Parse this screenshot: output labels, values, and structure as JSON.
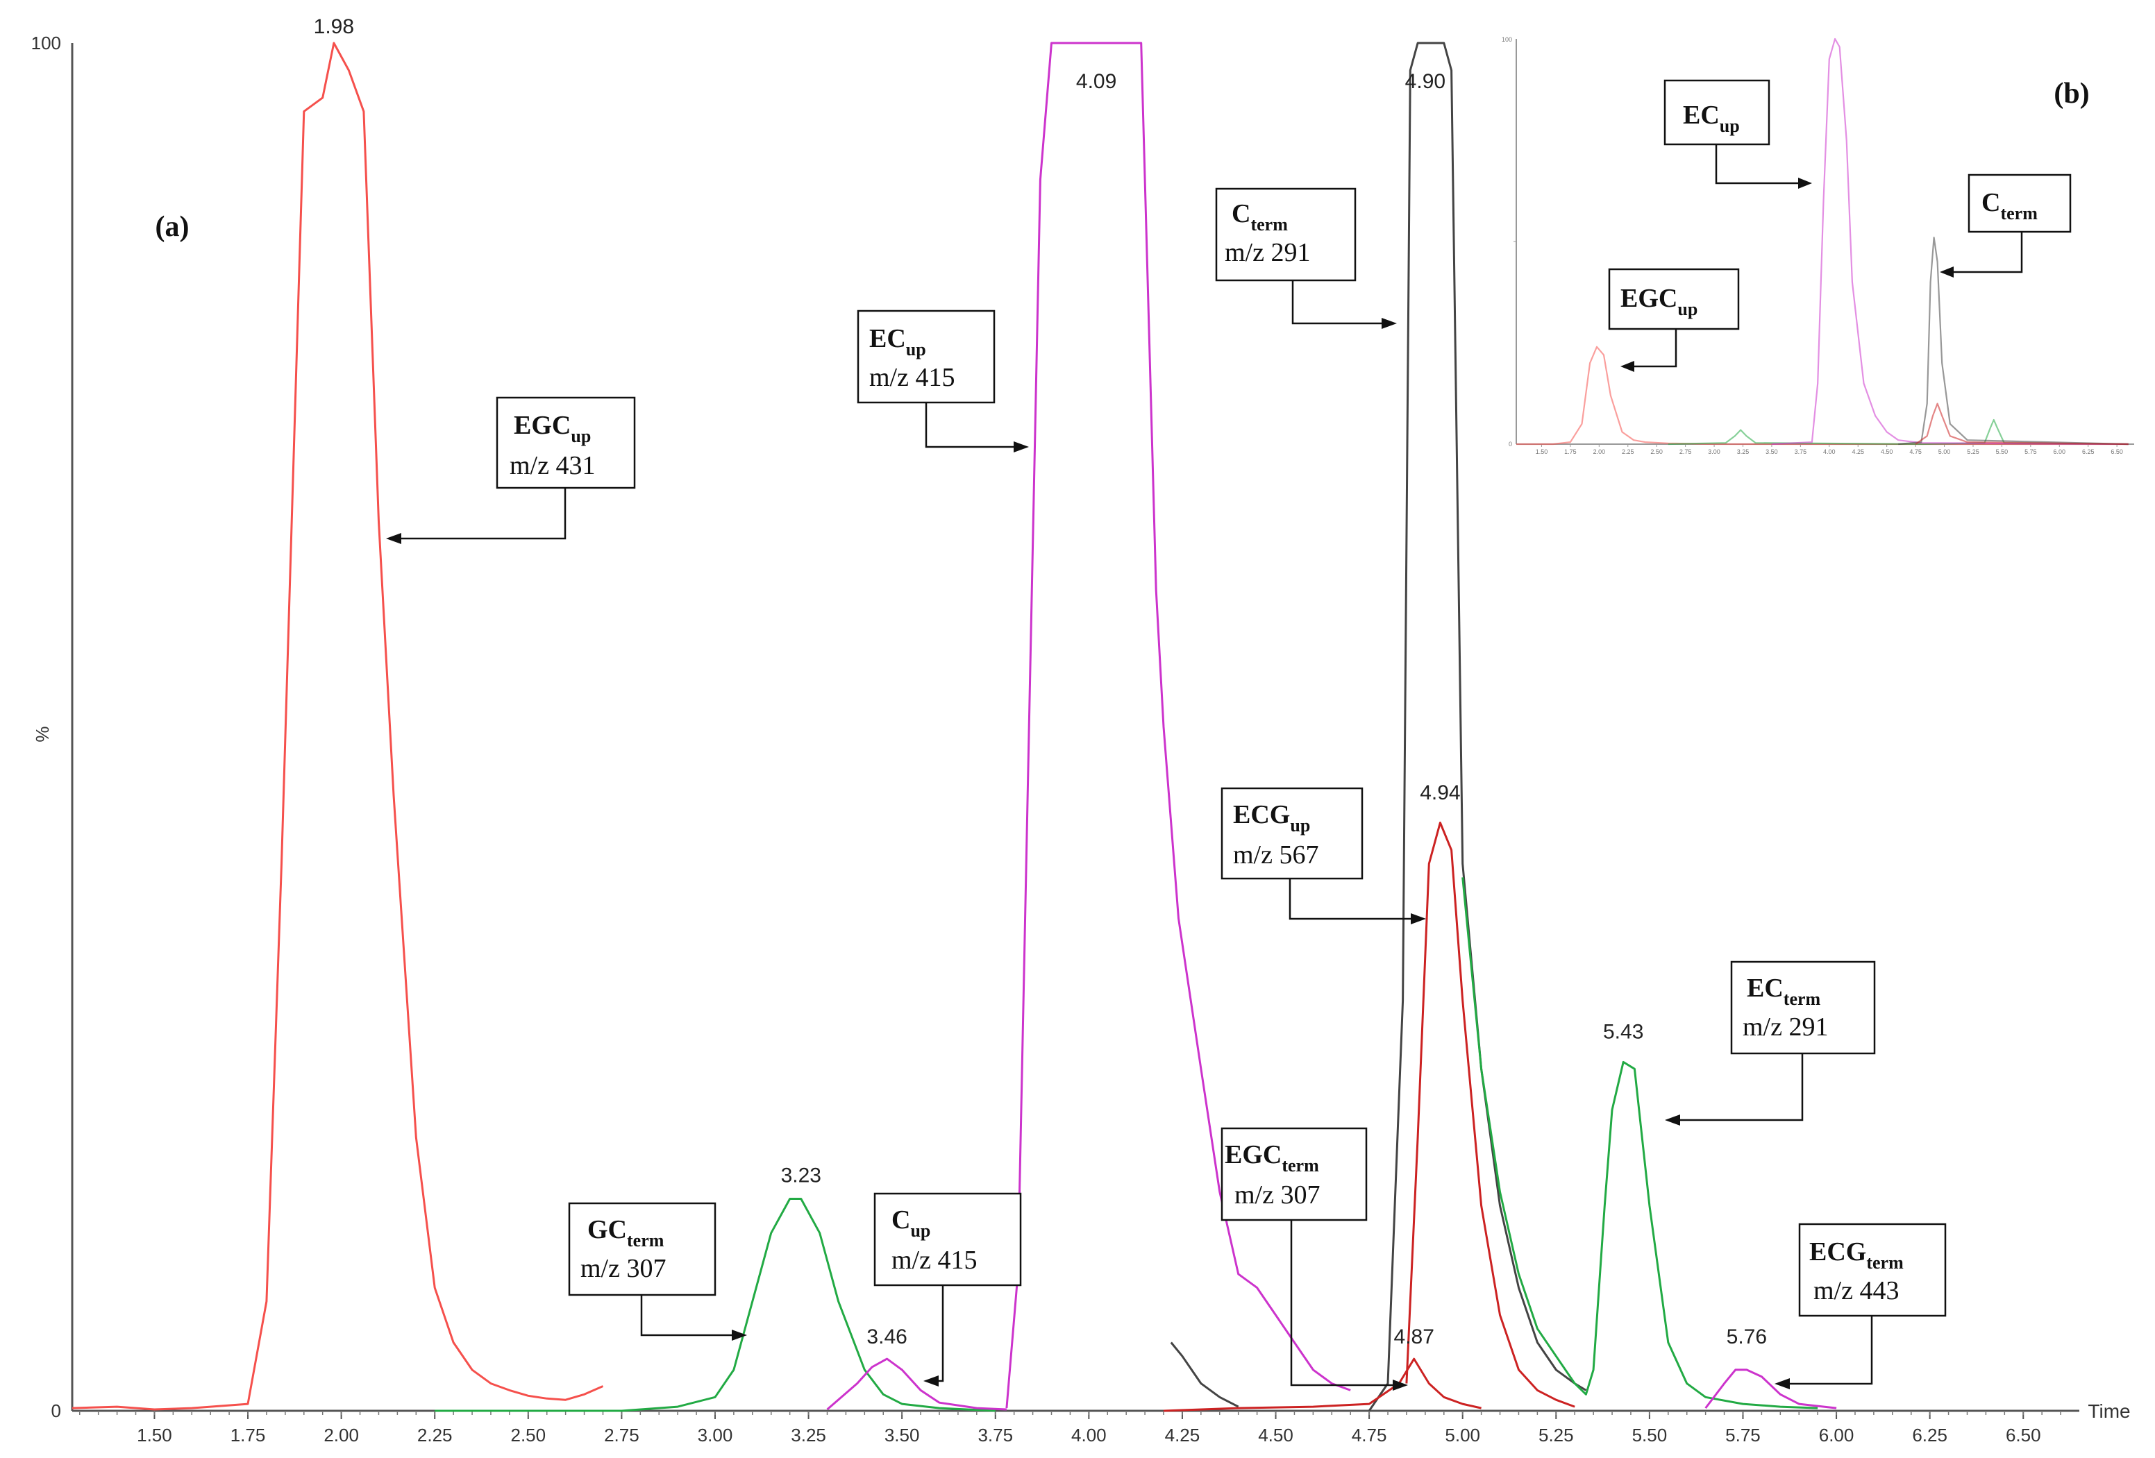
{
  "panel_labels": {
    "a": "(a)",
    "b": "(b)"
  },
  "chart_data": [
    {
      "type": "line",
      "panel": "(a)",
      "xlabel": "Time",
      "ylabel": "%",
      "xlim": [
        1.28,
        6.65
      ],
      "ylim": [
        0,
        100
      ],
      "x_ticks": [
        "1.50",
        "1.75",
        "2.00",
        "2.25",
        "2.50",
        "2.75",
        "3.00",
        "3.25",
        "3.50",
        "3.75",
        "4.00",
        "4.25",
        "4.50",
        "4.75",
        "5.00",
        "5.25",
        "5.50",
        "5.75",
        "6.00",
        "6.25",
        "6.50"
      ],
      "y_ticks": [
        "0",
        "100"
      ],
      "y_mid_label": "%",
      "colors": {
        "red": "#f5504c",
        "magenta": "#cc33cc",
        "black": "#444444",
        "green": "#22aa44",
        "darkred": "#cc2222"
      },
      "series": [
        {
          "color": "red",
          "x": [
            1.28,
            1.4,
            1.5,
            1.6,
            1.75,
            1.8,
            1.84,
            1.9,
            1.95,
            1.98,
            2.02,
            2.06,
            2.1,
            2.14,
            2.2,
            2.25,
            2.3,
            2.35,
            2.4,
            2.45,
            2.5,
            2.55,
            2.6,
            2.65,
            2.7
          ],
          "y": [
            0.2,
            0.3,
            0.1,
            0.2,
            0.5,
            8,
            40,
            95,
            96,
            100,
            98,
            95,
            65,
            45,
            20,
            9,
            5,
            3,
            2,
            1.5,
            1.1,
            0.9,
            0.8,
            1.2,
            1.8
          ]
        },
        {
          "color": "green",
          "x": [
            2.25,
            2.5,
            2.75,
            2.9,
            3.0,
            3.05,
            3.1,
            3.15,
            3.2,
            3.23,
            3.28,
            3.33,
            3.4,
            3.45,
            3.5,
            3.6,
            3.75
          ],
          "y": [
            0,
            0,
            0,
            0.3,
            1,
            3,
            8,
            13,
            15.5,
            15.5,
            13,
            8,
            3,
            1.2,
            0.5,
            0.2,
            0
          ]
        },
        {
          "color": "magenta",
          "x": [
            3.3,
            3.38,
            3.42,
            3.46,
            3.5,
            3.55,
            3.6,
            3.7,
            3.78
          ],
          "y": [
            0.1,
            2,
            3.2,
            3.8,
            3,
            1.5,
            0.6,
            0.2,
            0.1
          ]
        },
        {
          "color": "magenta",
          "x": [
            3.78,
            3.81,
            3.84,
            3.87,
            3.9,
            3.95,
            4.09,
            4.14,
            4.16,
            4.18,
            4.2,
            4.24,
            4.3,
            4.35,
            4.4,
            4.45,
            4.5,
            4.55,
            4.6,
            4.65,
            4.7
          ],
          "y": [
            0.2,
            10,
            50,
            90,
            100,
            100,
            100,
            100,
            80,
            60,
            50,
            36,
            25,
            16,
            10,
            9,
            7,
            5,
            3,
            2,
            1.5
          ]
        },
        {
          "color": "black",
          "x": [
            4.22,
            4.25,
            4.3,
            4.35,
            4.4
          ],
          "y": [
            5,
            4,
            2,
            1,
            0.3
          ]
        },
        {
          "color": "black",
          "x": [
            4.75,
            4.8,
            4.84,
            4.86,
            4.88,
            4.9,
            4.95,
            4.97,
            5.0,
            5.05,
            5.1,
            5.15,
            5.2,
            5.25,
            5.3,
            5.33
          ],
          "y": [
            0,
            2,
            30,
            98,
            100,
            100,
            100,
            98,
            40,
            25,
            15,
            9,
            5,
            3,
            2,
            1.5
          ]
        },
        {
          "color": "darkred",
          "x": [
            4.2,
            4.4,
            4.6,
            4.75,
            4.83,
            4.87,
            4.91,
            4.95,
            5.0,
            5.05
          ],
          "y": [
            0,
            0.2,
            0.3,
            0.5,
            2,
            3.8,
            2,
            1,
            0.5,
            0.2
          ]
        },
        {
          "color": "darkred",
          "x": [
            4.85,
            4.88,
            4.91,
            4.94,
            4.97,
            5.0,
            5.05,
            5.1,
            5.15,
            5.2,
            5.25,
            5.3
          ],
          "y": [
            2,
            20,
            40,
            43,
            41,
            30,
            15,
            7,
            3,
            1.5,
            0.8,
            0.3
          ]
        },
        {
          "color": "green",
          "x": [
            5.0,
            5.05,
            5.1,
            5.15,
            5.2,
            5.25,
            5.3,
            5.33,
            5.35,
            5.38,
            5.4,
            5.43,
            5.46,
            5.5,
            5.55,
            5.6,
            5.65,
            5.75,
            5.85,
            5.95
          ],
          "y": [
            39,
            25,
            16,
            10,
            6,
            4,
            2,
            1.2,
            3,
            15,
            22,
            25.5,
            25,
            15,
            5,
            2,
            1,
            0.5,
            0.3,
            0.2
          ]
        },
        {
          "color": "magenta",
          "x": [
            5.65,
            5.7,
            5.73,
            5.76,
            5.8,
            5.85,
            5.9,
            6.0
          ],
          "y": [
            0.2,
            2,
            3,
            3,
            2.5,
            1.2,
            0.5,
            0.2
          ]
        }
      ],
      "peak_labels": [
        {
          "text": "1.98",
          "x": 1.98,
          "y": 100
        },
        {
          "text": "4.09",
          "x": 4.02,
          "y": 96
        },
        {
          "text": "4.90",
          "x": 4.9,
          "y": 96
        },
        {
          "text": "4.94",
          "x": 4.94,
          "y": 44
        },
        {
          "text": "3.23",
          "x": 3.23,
          "y": 16
        },
        {
          "text": "3.46",
          "x": 3.46,
          "y": 4.2
        },
        {
          "text": "4.87",
          "x": 4.87,
          "y": 4.2
        },
        {
          "text": "5.43",
          "x": 5.43,
          "y": 26.5
        },
        {
          "text": "5.76",
          "x": 5.76,
          "y": 4.2
        }
      ],
      "annotations": [
        {
          "name": "egc-up",
          "main": "EGC",
          "sub": "up",
          "mz": "m/z 431"
        },
        {
          "name": "ec-up",
          "main": "EC",
          "sub": "up",
          "mz": "m/z 415"
        },
        {
          "name": "c-term",
          "main": "C",
          "sub": "term",
          "mz": "m/z 291"
        },
        {
          "name": "ecg-up",
          "main": "ECG",
          "sub": "up",
          "mz": "m/z 567"
        },
        {
          "name": "ec-term",
          "main": "EC",
          "sub": "term",
          "mz": "m/z 291"
        },
        {
          "name": "egc-term",
          "main": "EGC",
          "sub": "term",
          "mz": "m/z 307"
        },
        {
          "name": "gc-term",
          "main": "GC",
          "sub": "term",
          "mz": "m/z 307"
        },
        {
          "name": "c-up",
          "main": "C",
          "sub": "up",
          "mz": "m/z 415"
        },
        {
          "name": "ecg-term",
          "main": "ECG",
          "sub": "term",
          "mz": "m/z 443"
        }
      ]
    },
    {
      "type": "line",
      "panel": "(b)",
      "xlim": [
        1.28,
        6.65
      ],
      "ylim": [
        0,
        100
      ],
      "x_ticks": [
        "1.50",
        "1.75",
        "2.00",
        "2.25",
        "2.50",
        "2.75",
        "3.00",
        "3.25",
        "3.50",
        "3.75",
        "4.00",
        "4.25",
        "4.50",
        "4.75",
        "5.00",
        "5.25",
        "5.50",
        "5.75",
        "6.00",
        "6.25",
        "6.50"
      ],
      "y_ticks": [
        "0",
        "",
        "100"
      ],
      "series": [
        {
          "color": "red",
          "x": [
            1.28,
            1.6,
            1.75,
            1.85,
            1.92,
            1.98,
            2.04,
            2.1,
            2.2,
            2.3,
            2.4,
            2.6,
            3.0,
            4.0,
            6.6
          ],
          "y": [
            0,
            0,
            0.5,
            5,
            20,
            24,
            22,
            12,
            3,
            1,
            0.5,
            0.2,
            0,
            0,
            0
          ]
        },
        {
          "color": "green",
          "x": [
            2.6,
            3.1,
            3.18,
            3.23,
            3.28,
            3.36,
            4.8,
            5.35,
            5.4,
            5.43,
            5.46,
            5.52,
            6.6
          ],
          "y": [
            0,
            0.3,
            2,
            3.5,
            2,
            0.3,
            0,
            0.3,
            4,
            6,
            4,
            0.3,
            0
          ]
        },
        {
          "color": "magenta",
          "x": [
            3.5,
            3.85,
            3.9,
            3.95,
            4.0,
            4.05,
            4.09,
            4.15,
            4.2,
            4.3,
            4.4,
            4.5,
            4.6,
            4.8,
            6.6
          ],
          "y": [
            0,
            0.5,
            15,
            60,
            95,
            100,
            98,
            75,
            40,
            15,
            7,
            3,
            1,
            0.3,
            0
          ]
        },
        {
          "color": "black",
          "x": [
            4.6,
            4.8,
            4.85,
            4.88,
            4.91,
            4.94,
            4.98,
            5.05,
            5.2,
            6.6
          ],
          "y": [
            0,
            0.5,
            10,
            40,
            51,
            45,
            20,
            5,
            1,
            0
          ]
        },
        {
          "color": "darkred",
          "x": [
            4.75,
            4.85,
            4.9,
            4.94,
            4.98,
            5.05,
            5.2,
            6.6
          ],
          "y": [
            0,
            2,
            7,
            10,
            7,
            2,
            0.5,
            0
          ]
        }
      ],
      "annotations": [
        {
          "name": "inset-ec-up",
          "main": "EC",
          "sub": "up"
        },
        {
          "name": "inset-c-term",
          "main": "C",
          "sub": "term"
        },
        {
          "name": "inset-egc-up",
          "main": "EGC",
          "sub": "up"
        }
      ]
    }
  ]
}
